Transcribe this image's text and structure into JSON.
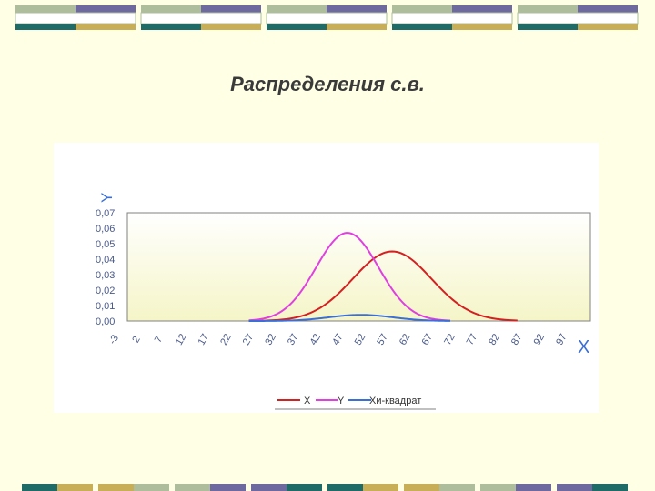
{
  "slide": {
    "title": "Распределения с.в."
  },
  "colors": {
    "background": "#FFFFE5",
    "deco_teal": "#1F6B67",
    "deco_purple": "#6E6AA0",
    "deco_tan": "#C9AE58",
    "deco_sage": "#AEBE9C",
    "plot_bg_top": "#FFFFFF",
    "plot_bg_bottom": "#F5F5C8"
  },
  "chart_data": {
    "type": "line",
    "ylabel": "Y",
    "xlabel": "X",
    "ylim": [
      0,
      0.07
    ],
    "yticks": [
      "0,07",
      "0,06",
      "0,05",
      "0,04",
      "0,03",
      "0,02",
      "0,01",
      "0,00"
    ],
    "categories": [
      "-3",
      "2",
      "7",
      "12",
      "17",
      "22",
      "27",
      "32",
      "37",
      "42",
      "47",
      "52",
      "57",
      "62",
      "67",
      "72",
      "77",
      "82",
      "87",
      "92",
      "97"
    ],
    "legend_position": "bottom",
    "series": [
      {
        "name": "X",
        "color": "#D42020",
        "mean": 59,
        "sd": 8.8,
        "x_range": [
          27,
          87
        ],
        "peak": 0.045
      },
      {
        "name": "Y",
        "color": "#E040E0",
        "mean": 49,
        "sd": 7,
        "x_range": [
          27,
          72
        ],
        "peak": 0.057
      },
      {
        "name": "Хи-квадрат",
        "color": "#3A6FD8",
        "mean": 52,
        "sd": 7,
        "x_range": [
          27,
          72
        ],
        "peak": 0.004
      }
    ]
  }
}
